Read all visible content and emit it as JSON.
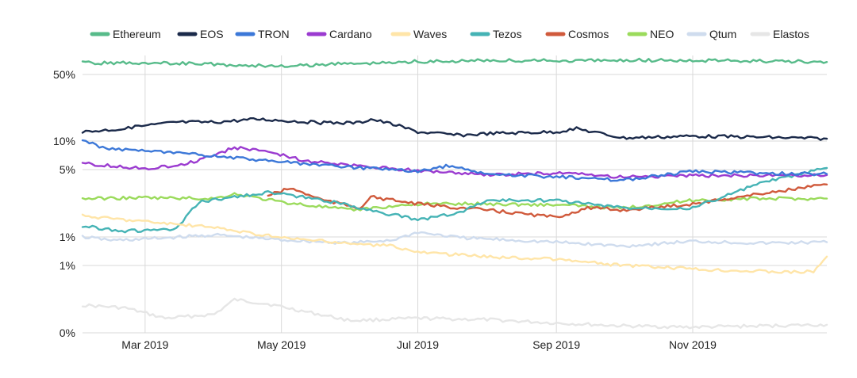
{
  "chart_data": {
    "type": "line",
    "title": "",
    "xlabel": "",
    "ylabel": "",
    "y_scale": "log",
    "grid": "on",
    "legend_position": "top",
    "x_domain": [
      "2019-02-01",
      "2019-12-31"
    ],
    "x_ticks": [
      {
        "date": "2019-03-01",
        "label": "Mar 2019"
      },
      {
        "date": "2019-05-01",
        "label": "May 2019"
      },
      {
        "date": "2019-07-01",
        "label": "Jul 2019"
      },
      {
        "date": "2019-09-01",
        "label": "Sep 2019"
      },
      {
        "date": "2019-11-01",
        "label": "Nov 2019"
      }
    ],
    "y_ticks": [
      {
        "value": 0.03,
        "label": "0%"
      },
      {
        "value": 0.5,
        "label": "1%"
      },
      {
        "value": 1.0,
        "label": "1%"
      },
      {
        "value": 5,
        "label": "5%"
      },
      {
        "value": 10,
        "label": "10%"
      },
      {
        "value": 50,
        "label": "50%"
      }
    ],
    "series": [
      {
        "name": "Ethereum",
        "color": "#57bb8a",
        "points": [
          [
            "2019-02-01",
            70
          ],
          [
            "2019-03-15",
            70
          ],
          [
            "2019-04-15",
            65
          ],
          [
            "2019-05-01",
            64
          ],
          [
            "2019-06-01",
            69
          ],
          [
            "2019-07-01",
            73
          ],
          [
            "2019-08-01",
            75
          ],
          [
            "2019-09-01",
            75
          ],
          [
            "2019-10-01",
            76
          ],
          [
            "2019-11-01",
            75
          ],
          [
            "2019-12-01",
            74
          ],
          [
            "2019-12-31",
            72
          ]
        ]
      },
      {
        "name": "EOS",
        "color": "#1b2a4a",
        "points": [
          [
            "2019-02-01",
            12.5
          ],
          [
            "2019-02-20",
            13.5
          ],
          [
            "2019-03-01",
            14.5
          ],
          [
            "2019-03-15",
            15.8
          ],
          [
            "2019-04-01",
            15.8
          ],
          [
            "2019-04-20",
            17.0
          ],
          [
            "2019-05-01",
            16.5
          ],
          [
            "2019-05-20",
            15.5
          ],
          [
            "2019-06-05",
            15.6
          ],
          [
            "2019-06-10",
            17.0
          ],
          [
            "2019-06-20",
            15.0
          ],
          [
            "2019-07-01",
            12.5
          ],
          [
            "2019-07-20",
            11.5
          ],
          [
            "2019-08-01",
            12.0
          ],
          [
            "2019-09-01",
            12.5
          ],
          [
            "2019-09-10",
            13.5
          ],
          [
            "2019-09-25",
            11.5
          ],
          [
            "2019-10-01",
            10.8
          ],
          [
            "2019-11-01",
            11.3
          ],
          [
            "2019-12-01",
            11.0
          ],
          [
            "2019-12-31",
            10.6
          ]
        ]
      },
      {
        "name": "TRON",
        "color": "#3c78d8",
        "points": [
          [
            "2019-02-01",
            10.2
          ],
          [
            "2019-02-10",
            8.5
          ],
          [
            "2019-03-01",
            7.8
          ],
          [
            "2019-04-01",
            7.0
          ],
          [
            "2019-05-01",
            6.0
          ],
          [
            "2019-06-01",
            5.3
          ],
          [
            "2019-07-01",
            4.8
          ],
          [
            "2019-07-15",
            5.5
          ],
          [
            "2019-08-01",
            4.5
          ],
          [
            "2019-09-01",
            4.2
          ],
          [
            "2019-10-01",
            3.9
          ],
          [
            "2019-11-01",
            4.8
          ],
          [
            "2019-12-01",
            4.6
          ],
          [
            "2019-12-31",
            4.5
          ]
        ]
      },
      {
        "name": "Cardano",
        "color": "#9b3bd0",
        "points": [
          [
            "2019-02-01",
            5.8
          ],
          [
            "2019-03-01",
            5.1
          ],
          [
            "2019-03-20",
            5.8
          ],
          [
            "2019-04-10",
            8.5
          ],
          [
            "2019-04-25",
            7.8
          ],
          [
            "2019-05-10",
            6.3
          ],
          [
            "2019-06-01",
            5.5
          ],
          [
            "2019-07-01",
            4.9
          ],
          [
            "2019-08-01",
            4.4
          ],
          [
            "2019-09-01",
            4.6
          ],
          [
            "2019-10-01",
            4.2
          ],
          [
            "2019-11-01",
            4.3
          ],
          [
            "2019-12-31",
            4.4
          ]
        ]
      },
      {
        "name": "Waves",
        "color": "#ffe5a8",
        "points": [
          [
            "2019-02-01",
            1.65
          ],
          [
            "2019-03-01",
            1.45
          ],
          [
            "2019-04-01",
            1.25
          ],
          [
            "2019-05-01",
            0.98
          ],
          [
            "2019-06-01",
            0.85
          ],
          [
            "2019-06-20",
            0.8
          ],
          [
            "2019-07-01",
            0.69
          ],
          [
            "2019-08-01",
            0.62
          ],
          [
            "2019-09-01",
            0.58
          ],
          [
            "2019-10-01",
            0.5
          ],
          [
            "2019-11-01",
            0.43
          ],
          [
            "2019-12-15",
            0.38
          ],
          [
            "2019-12-25",
            0.39
          ],
          [
            "2019-12-31",
            0.62
          ]
        ]
      },
      {
        "name": "Tezos",
        "color": "#45b3b5",
        "points": [
          [
            "2019-02-01",
            1.3
          ],
          [
            "2019-02-20",
            1.15
          ],
          [
            "2019-03-15",
            1.2
          ],
          [
            "2019-03-25",
            2.3
          ],
          [
            "2019-04-10",
            2.6
          ],
          [
            "2019-04-25",
            2.9
          ],
          [
            "2019-05-05",
            2.7
          ],
          [
            "2019-05-20",
            2.4
          ],
          [
            "2019-06-01",
            2.1
          ],
          [
            "2019-07-01",
            1.5
          ],
          [
            "2019-07-20",
            1.8
          ],
          [
            "2019-08-01",
            2.4
          ],
          [
            "2019-09-01",
            2.4
          ],
          [
            "2019-10-01",
            2.0
          ],
          [
            "2019-11-01",
            2.0
          ],
          [
            "2019-12-01",
            3.6
          ],
          [
            "2019-12-31",
            5.2
          ]
        ]
      },
      {
        "name": "Cosmos",
        "color": "#d05a3c",
        "points": [
          [
            "2019-04-25",
            2.7
          ],
          [
            "2019-05-05",
            3.2
          ],
          [
            "2019-05-20",
            2.4
          ],
          [
            "2019-06-05",
            2.0
          ],
          [
            "2019-06-10",
            2.6
          ],
          [
            "2019-07-01",
            2.2
          ],
          [
            "2019-07-20",
            2.0
          ],
          [
            "2019-08-01",
            1.9
          ],
          [
            "2019-09-01",
            1.6
          ],
          [
            "2019-09-15",
            2.0
          ],
          [
            "2019-10-01",
            1.9
          ],
          [
            "2019-11-01",
            2.2
          ],
          [
            "2019-12-01",
            2.8
          ],
          [
            "2019-12-31",
            3.5
          ]
        ]
      },
      {
        "name": "NEO",
        "color": "#9bdb5c",
        "points": [
          [
            "2019-02-01",
            2.5
          ],
          [
            "2019-03-01",
            2.55
          ],
          [
            "2019-04-01",
            2.5
          ],
          [
            "2019-04-10",
            2.8
          ],
          [
            "2019-05-01",
            2.3
          ],
          [
            "2019-06-01",
            1.9
          ],
          [
            "2019-07-01",
            2.2
          ],
          [
            "2019-08-01",
            2.2
          ],
          [
            "2019-09-01",
            2.15
          ],
          [
            "2019-10-01",
            2.0
          ],
          [
            "2019-11-01",
            2.4
          ],
          [
            "2019-12-01",
            2.5
          ],
          [
            "2019-12-31",
            2.5
          ]
        ]
      },
      {
        "name": "Qtum",
        "color": "#cfdcee",
        "points": [
          [
            "2019-02-01",
            1.0
          ],
          [
            "2019-02-15",
            0.92
          ],
          [
            "2019-03-01",
            0.95
          ],
          [
            "2019-04-01",
            1.05
          ],
          [
            "2019-05-01",
            0.93
          ],
          [
            "2019-06-01",
            0.86
          ],
          [
            "2019-06-20",
            0.93
          ],
          [
            "2019-07-01",
            1.12
          ],
          [
            "2019-07-20",
            0.98
          ],
          [
            "2019-08-01",
            0.95
          ],
          [
            "2019-09-01",
            0.88
          ],
          [
            "2019-10-01",
            0.8
          ],
          [
            "2019-11-01",
            0.9
          ],
          [
            "2019-12-01",
            0.86
          ],
          [
            "2019-12-31",
            0.88
          ]
        ]
      },
      {
        "name": "Elastos",
        "color": "#e6e6e6",
        "points": [
          [
            "2019-02-01",
            0.095
          ],
          [
            "2019-02-20",
            0.085
          ],
          [
            "2019-03-10",
            0.055
          ],
          [
            "2019-04-01",
            0.065
          ],
          [
            "2019-04-10",
            0.12
          ],
          [
            "2019-04-25",
            0.1
          ],
          [
            "2019-05-10",
            0.075
          ],
          [
            "2019-06-01",
            0.05
          ],
          [
            "2019-07-01",
            0.055
          ],
          [
            "2019-08-01",
            0.052
          ],
          [
            "2019-09-01",
            0.045
          ],
          [
            "2019-10-01",
            0.04
          ],
          [
            "2019-11-01",
            0.038
          ],
          [
            "2019-12-01",
            0.04
          ],
          [
            "2019-12-31",
            0.042
          ]
        ]
      }
    ]
  }
}
